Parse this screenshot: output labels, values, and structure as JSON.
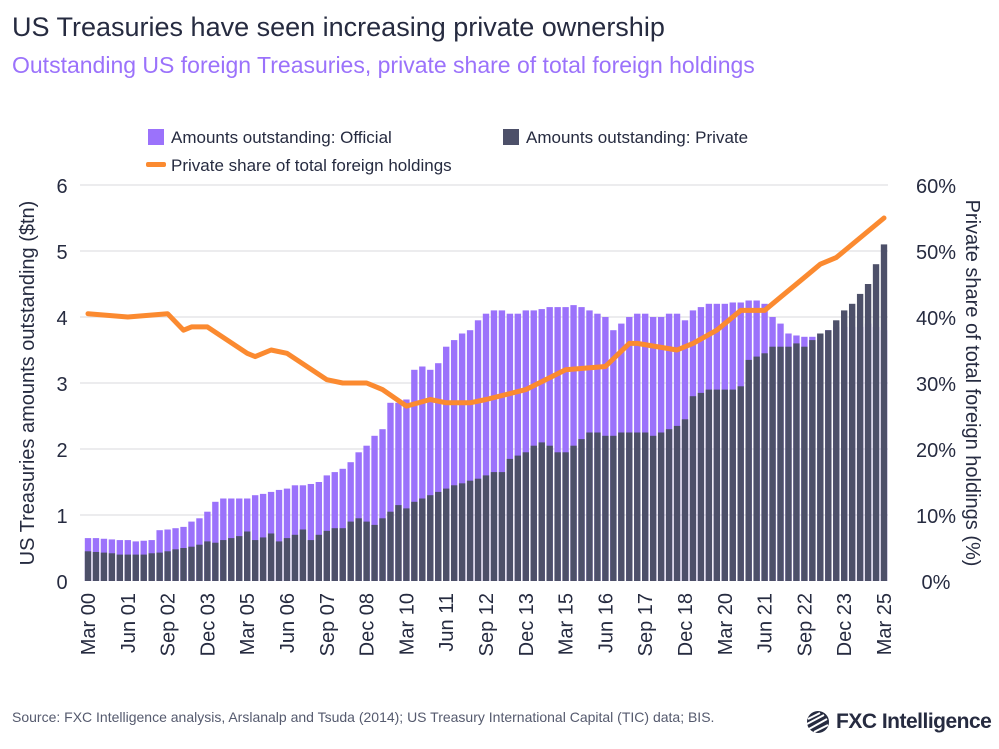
{
  "title": "US Treasuries have seen increasing private ownership",
  "subtitle": "Outstanding US foreign Treasuries, private share of total foreign holdings",
  "source": "Source: FXC Intelligence analysis, Arslanalp and Tsuda (2014); US Treasury International Capital (TIC) data; BIS.",
  "logo": "FXC Intelligence",
  "chart_data": {
    "type": "bar+line",
    "frequency": "quarterly",
    "first_period": "Mar 00",
    "ylabel": "US Treasuries amounts outstanding ($tn)",
    "y2label": "Private share of total foreign holdings (%)",
    "ylim": [
      0,
      6
    ],
    "y2lim": [
      0,
      60
    ],
    "yticks": [
      "0",
      "1",
      "2",
      "3",
      "4",
      "5",
      "6"
    ],
    "y2ticks": [
      "0%",
      "10%",
      "20%",
      "30%",
      "40%",
      "50%",
      "60%"
    ],
    "xticks": [
      "Mar 00",
      "Jun 01",
      "Sep 02",
      "Dec 03",
      "Mar 05",
      "Jun 06",
      "Sep 07",
      "Dec 08",
      "Mar 10",
      "Jun 11",
      "Sep 12",
      "Dec 13",
      "Mar 15",
      "Jun 16",
      "Sep 17",
      "Dec 18",
      "Mar 20",
      "Jun 21",
      "Sep 22",
      "Dec 23",
      "Mar 25"
    ],
    "grid": true,
    "legend_placement": "top",
    "colors": {
      "official": "#9b72fb",
      "private": "#4d5069",
      "share": "#fb8a30"
    },
    "series": [
      {
        "name": "Amounts outstanding: Official",
        "kind": "bar",
        "values": [
          0.65,
          0.65,
          0.64,
          0.63,
          0.62,
          0.62,
          0.6,
          0.61,
          0.62,
          0.77,
          0.78,
          0.8,
          0.82,
          0.9,
          0.95,
          1.05,
          1.2,
          1.25,
          1.25,
          1.25,
          1.25,
          1.3,
          1.32,
          1.35,
          1.38,
          1.4,
          1.45,
          1.45,
          1.47,
          1.5,
          1.6,
          1.65,
          1.7,
          1.8,
          1.95,
          2.05,
          2.2,
          2.3,
          2.7,
          2.7,
          2.75,
          3.2,
          3.25,
          3.2,
          3.3,
          3.55,
          3.65,
          3.75,
          3.8,
          3.95,
          4.05,
          4.1,
          4.1,
          4.05,
          4.05,
          4.1,
          4.1,
          4.12,
          4.15,
          4.15,
          4.15,
          4.18,
          4.15,
          4.1,
          4.05,
          4.0,
          3.8,
          3.9,
          4.0,
          4.05,
          4.05,
          4.0,
          4.0,
          4.05,
          4.05,
          3.95,
          4.1,
          4.15,
          4.2,
          4.2,
          4.2,
          4.22,
          4.22,
          4.25,
          4.25,
          4.2,
          4.0,
          3.9,
          3.75,
          3.72,
          3.7,
          3.7,
          3.75,
          3.8,
          3.85,
          3.85,
          3.85,
          3.85,
          3.9,
          3.85,
          3.8
        ]
      },
      {
        "name": "Amounts outstanding: Private",
        "kind": "bar",
        "values": [
          0.45,
          0.44,
          0.43,
          0.42,
          0.4,
          0.4,
          0.4,
          0.4,
          0.42,
          0.43,
          0.45,
          0.48,
          0.5,
          0.52,
          0.55,
          0.6,
          0.58,
          0.62,
          0.65,
          0.68,
          0.75,
          0.62,
          0.66,
          0.72,
          0.6,
          0.65,
          0.7,
          0.78,
          0.62,
          0.7,
          0.76,
          0.8,
          0.8,
          0.9,
          0.95,
          0.9,
          0.85,
          0.95,
          1.05,
          1.15,
          1.1,
          1.2,
          1.25,
          1.3,
          1.35,
          1.4,
          1.45,
          1.48,
          1.52,
          1.55,
          1.6,
          1.65,
          1.65,
          1.85,
          1.9,
          1.95,
          2.05,
          2.1,
          2.05,
          1.95,
          1.95,
          2.05,
          2.15,
          2.25,
          2.25,
          2.2,
          2.2,
          2.25,
          2.25,
          2.25,
          2.25,
          2.2,
          2.25,
          2.3,
          2.35,
          2.45,
          2.8,
          2.85,
          2.9,
          2.9,
          2.9,
          2.9,
          2.95,
          3.35,
          3.4,
          3.45,
          3.55,
          3.55,
          3.55,
          3.6,
          3.55,
          3.65,
          3.75,
          3.8,
          3.95,
          4.1,
          4.2,
          4.35,
          4.5,
          4.8,
          5.1
        ]
      },
      {
        "name": "Private share of total foreign holdings",
        "kind": "line",
        "axis": "right",
        "points": [
          [
            "Mar 00",
            40.5
          ],
          [
            "Jun 01",
            40
          ],
          [
            "Sep 02",
            40.5
          ],
          [
            "Mar 03",
            38
          ],
          [
            "Jun 03",
            38.5
          ],
          [
            "Dec 03",
            38.5
          ],
          [
            "Mar 05",
            34.5
          ],
          [
            "Jun 05",
            34
          ],
          [
            "Dec 05",
            35
          ],
          [
            "Jun 06",
            34.5
          ],
          [
            "Sep 07",
            30.5
          ],
          [
            "Mar 08",
            30
          ],
          [
            "Dec 08",
            30
          ],
          [
            "Jun 09",
            29
          ],
          [
            "Mar 10",
            26.5
          ],
          [
            "Dec 10",
            27.5
          ],
          [
            "Jun 11",
            27
          ],
          [
            "Mar 12",
            27
          ],
          [
            "Sep 12",
            27.5
          ],
          [
            "Dec 13",
            29
          ],
          [
            "Mar 15",
            32
          ],
          [
            "Jun 16",
            32.5
          ],
          [
            "Mar 17",
            36
          ],
          [
            "Jun 17",
            36
          ],
          [
            "Sep 18",
            35
          ],
          [
            "Mar 19",
            36
          ],
          [
            "Dec 19",
            38
          ],
          [
            "Sep 20",
            41
          ],
          [
            "Mar 21",
            41
          ],
          [
            "Jun 21",
            41
          ],
          [
            "Dec 21",
            43
          ],
          [
            "Sep 22",
            46
          ],
          [
            "Mar 23",
            48
          ],
          [
            "Sep 23",
            49
          ],
          [
            "Dec 23",
            50
          ],
          [
            "Mar 25",
            55
          ]
        ]
      }
    ]
  }
}
